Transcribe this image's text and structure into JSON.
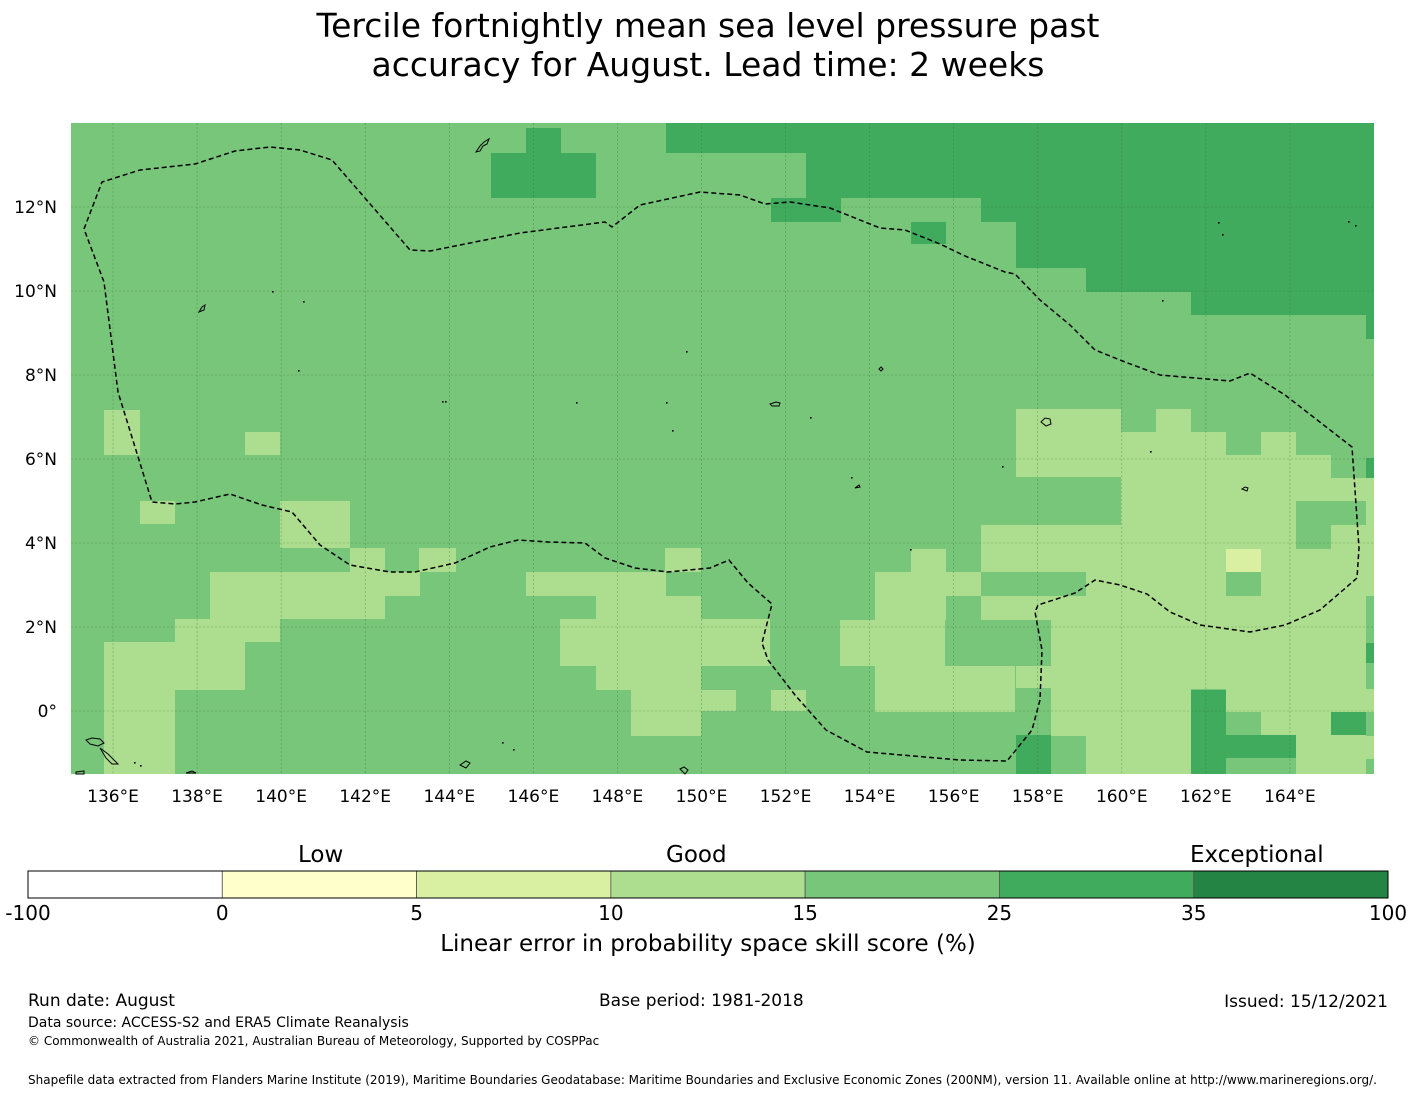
{
  "title": {
    "line1": "Tercile fortnightly mean sea level pressure past",
    "line2": "accuracy for August. Lead time: 2 weeks"
  },
  "map": {
    "lon_range": [
      135,
      166
    ],
    "lat_range": [
      -1.5,
      14
    ],
    "lon_ticks": [
      "136°E",
      "138°E",
      "140°E",
      "142°E",
      "144°E",
      "146°E",
      "148°E",
      "150°E",
      "152°E",
      "154°E",
      "156°E",
      "158°E",
      "160°E",
      "162°E",
      "164°E"
    ],
    "lat_ticks": [
      "12°N",
      "10°N",
      "8°N",
      "6°N",
      "4°N",
      "2°N",
      "0°"
    ],
    "eez_boundary": "dashed"
  },
  "legend": {
    "categories": [
      "Low",
      "Good",
      "Exceptional"
    ],
    "tick_labels": [
      "-100",
      "0",
      "5",
      "10",
      "15",
      "25",
      "35",
      "100"
    ],
    "colors": [
      "#ffffff",
      "#ffffcc",
      "#d9f0a3",
      "#addd8e",
      "#78c679",
      "#41ab5d",
      "#238443"
    ],
    "label": "Linear error in probability space skill score (%)"
  },
  "footer": {
    "run_date": "Run date: August",
    "base_period": "Base period: 1981-2018",
    "issued": "Issued: 15/12/2021",
    "data_source": "Data source: ACCESS-S2 and ERA5 Climate Reanalysis",
    "copyright": "© Commonwealth of Australia 2021, Australian Bureau of Meteorology, Supported by COSPPac",
    "shapefile": "Shapefile data extracted from Flanders Marine Institute (2019), Maritime Boundaries Geodatabase: Maritime Boundaries and Exclusive Economic Zones (200NM), version 11. Available online at http://www.marineregions.org/."
  }
}
